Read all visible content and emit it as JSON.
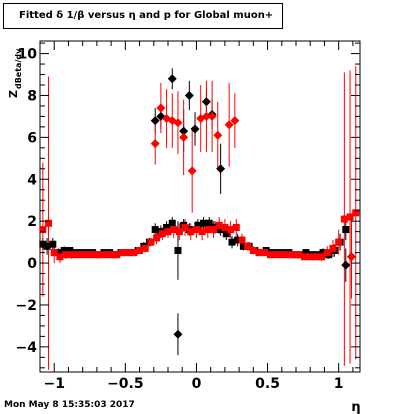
{
  "title": "Fitted δ 1/β versus η and p for Global muon+",
  "footer_timestamp": "Mon May  8 15:35:03 2017",
  "colors": {
    "series_black": "#000000",
    "series_red": "#ff0000",
    "axis": "#000000",
    "background": "#ffffff"
  },
  "chart_data": {
    "type": "scatter",
    "title": "Fitted δ 1/β versus η and p for Global muon+",
    "xlabel": "η",
    "ylabel": "Z_dBeta/dv",
    "ylabel_main": "Z",
    "ylabel_sub": "dBeta/dv",
    "xlim": [
      -1.1,
      1.15
    ],
    "ylim": [
      -5.2,
      10.6
    ],
    "x_ticks": [
      -1,
      -0.5,
      0,
      0.5,
      1
    ],
    "x_tick_labels": [
      "−1",
      "−0.5",
      "0",
      "0.5",
      "1"
    ],
    "y_ticks": [
      -4,
      -2,
      0,
      2,
      4,
      6,
      8,
      10
    ],
    "y_tick_labels": [
      "−4",
      "−2",
      "0",
      "2",
      "4",
      "6",
      "8",
      "10"
    ],
    "grid": false,
    "series": [
      {
        "color": "#000000",
        "points": [
          {
            "x": -1.08,
            "y": 0.9,
            "marker": "square",
            "err": 0.3
          },
          {
            "x": -1.05,
            "y": 0.8,
            "marker": "square",
            "err": 0.4
          },
          {
            "x": -1.01,
            "y": 0.9,
            "marker": "square",
            "err": 0.3
          },
          {
            "x": -0.97,
            "y": 0.5,
            "marker": "square",
            "err": 0.2
          },
          {
            "x": -0.93,
            "y": 0.6,
            "marker": "square",
            "err": 0.2
          },
          {
            "x": -0.89,
            "y": 0.6,
            "marker": "square",
            "err": 0.1
          },
          {
            "x": -0.85,
            "y": 0.5,
            "marker": "square",
            "err": 0.1
          },
          {
            "x": -0.81,
            "y": 0.5,
            "marker": "square",
            "err": 0.1
          },
          {
            "x": -0.77,
            "y": 0.5,
            "marker": "square",
            "err": 0.1
          },
          {
            "x": -0.73,
            "y": 0.5,
            "marker": "square",
            "err": 0.1
          },
          {
            "x": -0.69,
            "y": 0.4,
            "marker": "square",
            "err": 0.1
          },
          {
            "x": -0.65,
            "y": 0.5,
            "marker": "square",
            "err": 0.1
          },
          {
            "x": -0.61,
            "y": 0.5,
            "marker": "square",
            "err": 0.1
          },
          {
            "x": -0.57,
            "y": 0.4,
            "marker": "square",
            "err": 0.1
          },
          {
            "x": -0.53,
            "y": 0.5,
            "marker": "square",
            "err": 0.1
          },
          {
            "x": -0.49,
            "y": 0.5,
            "marker": "square",
            "err": 0.1
          },
          {
            "x": -0.45,
            "y": 0.5,
            "marker": "square",
            "err": 0.1
          },
          {
            "x": -0.41,
            "y": 0.6,
            "marker": "square",
            "err": 0.1
          },
          {
            "x": -0.37,
            "y": 0.8,
            "marker": "square",
            "err": 0.2
          },
          {
            "x": -0.33,
            "y": 1.0,
            "marker": "square",
            "err": 0.2
          },
          {
            "x": -0.29,
            "y": 1.6,
            "marker": "square",
            "err": 0.3
          },
          {
            "x": -0.25,
            "y": 1.5,
            "marker": "square",
            "err": 0.3
          },
          {
            "x": -0.21,
            "y": 1.7,
            "marker": "square",
            "err": 0.3
          },
          {
            "x": -0.17,
            "y": 1.9,
            "marker": "square",
            "err": 0.3
          },
          {
            "x": -0.13,
            "y": 0.6,
            "marker": "square",
            "err": 1.4
          },
          {
            "x": -0.09,
            "y": 1.8,
            "marker": "square",
            "err": 0.3
          },
          {
            "x": -0.05,
            "y": 1.6,
            "marker": "square",
            "err": 0.3
          },
          {
            "x": 0.01,
            "y": 1.8,
            "marker": "square",
            "err": 0.3
          },
          {
            "x": 0.05,
            "y": 1.9,
            "marker": "square",
            "err": 0.3
          },
          {
            "x": 0.09,
            "y": 1.9,
            "marker": "square",
            "err": 0.3
          },
          {
            "x": 0.13,
            "y": 1.7,
            "marker": "square",
            "err": 0.3
          },
          {
            "x": 0.17,
            "y": 1.6,
            "marker": "square",
            "err": 0.3
          },
          {
            "x": 0.21,
            "y": 1.4,
            "marker": "square",
            "err": 0.3
          },
          {
            "x": 0.25,
            "y": 1.0,
            "marker": "square",
            "err": 0.3
          },
          {
            "x": 0.29,
            "y": 1.1,
            "marker": "square",
            "err": 0.3
          },
          {
            "x": 0.33,
            "y": 0.8,
            "marker": "square",
            "err": 0.2
          },
          {
            "x": 0.37,
            "y": 0.8,
            "marker": "square",
            "err": 0.2
          },
          {
            "x": 0.41,
            "y": 0.6,
            "marker": "square",
            "err": 0.1
          },
          {
            "x": 0.45,
            "y": 0.5,
            "marker": "square",
            "err": 0.1
          },
          {
            "x": 0.49,
            "y": 0.6,
            "marker": "square",
            "err": 0.1
          },
          {
            "x": 0.53,
            "y": 0.5,
            "marker": "square",
            "err": 0.1
          },
          {
            "x": 0.57,
            "y": 0.5,
            "marker": "square",
            "err": 0.1
          },
          {
            "x": 0.61,
            "y": 0.5,
            "marker": "square",
            "err": 0.1
          },
          {
            "x": 0.65,
            "y": 0.5,
            "marker": "square",
            "err": 0.1
          },
          {
            "x": 0.69,
            "y": 0.4,
            "marker": "square",
            "err": 0.1
          },
          {
            "x": 0.73,
            "y": 0.4,
            "marker": "square",
            "err": 0.1
          },
          {
            "x": 0.77,
            "y": 0.5,
            "marker": "square",
            "err": 0.1
          },
          {
            "x": 0.81,
            "y": 0.4,
            "marker": "square",
            "err": 0.1
          },
          {
            "x": 0.85,
            "y": 0.4,
            "marker": "square",
            "err": 0.1
          },
          {
            "x": 0.89,
            "y": 0.5,
            "marker": "square",
            "err": 0.2
          },
          {
            "x": 0.93,
            "y": 0.4,
            "marker": "square",
            "err": 0.2
          },
          {
            "x": 0.97,
            "y": 0.6,
            "marker": "square",
            "err": 0.3
          },
          {
            "x": 1.01,
            "y": 1.0,
            "marker": "square",
            "err": 0.4
          },
          {
            "x": 1.05,
            "y": 1.6,
            "marker": "square",
            "err": 0.5
          },
          {
            "x": -0.29,
            "y": 6.8,
            "marker": "diamond",
            "err": 0.6
          },
          {
            "x": -0.25,
            "y": 7.0,
            "marker": "diamond",
            "err": 0.6
          },
          {
            "x": -0.17,
            "y": 8.8,
            "marker": "diamond",
            "err": 0.5
          },
          {
            "x": -0.13,
            "y": -3.4,
            "marker": "diamond",
            "err": 1.0
          },
          {
            "x": -0.09,
            "y": 6.3,
            "marker": "diamond",
            "err": 1.0
          },
          {
            "x": -0.05,
            "y": 8.0,
            "marker": "diamond",
            "err": 0.7
          },
          {
            "x": -0.01,
            "y": 6.4,
            "marker": "diamond",
            "err": 0.8
          },
          {
            "x": 0.07,
            "y": 7.7,
            "marker": "diamond",
            "err": 0.6
          },
          {
            "x": 0.11,
            "y": 7.1,
            "marker": "diamond",
            "err": 0.7
          },
          {
            "x": 0.17,
            "y": 4.5,
            "marker": "diamond",
            "err": 1.2
          },
          {
            "x": 1.05,
            "y": -0.1,
            "marker": "diamond",
            "err": 0.8
          },
          {
            "x": 1.09,
            "y": 0.3,
            "marker": "diamond",
            "err": 1.5
          }
        ]
      },
      {
        "color": "#ff0000",
        "points": [
          {
            "x": -1.08,
            "y": 1.6,
            "marker": "square",
            "err": 3.2
          },
          {
            "x": -1.04,
            "y": 1.9,
            "marker": "square",
            "err": 7.0
          },
          {
            "x": -1.0,
            "y": 0.5,
            "marker": "square",
            "err": 0.5
          },
          {
            "x": -0.96,
            "y": 0.3,
            "marker": "square",
            "err": 0.3
          },
          {
            "x": -0.92,
            "y": 0.4,
            "marker": "square",
            "err": 0.2
          },
          {
            "x": -0.88,
            "y": 0.4,
            "marker": "square",
            "err": 0.2
          },
          {
            "x": -0.84,
            "y": 0.4,
            "marker": "square",
            "err": 0.1
          },
          {
            "x": -0.8,
            "y": 0.4,
            "marker": "square",
            "err": 0.1
          },
          {
            "x": -0.76,
            "y": 0.4,
            "marker": "square",
            "err": 0.1
          },
          {
            "x": -0.72,
            "y": 0.4,
            "marker": "square",
            "err": 0.1
          },
          {
            "x": -0.68,
            "y": 0.4,
            "marker": "square",
            "err": 0.1
          },
          {
            "x": -0.64,
            "y": 0.4,
            "marker": "square",
            "err": 0.1
          },
          {
            "x": -0.6,
            "y": 0.4,
            "marker": "square",
            "err": 0.1
          },
          {
            "x": -0.56,
            "y": 0.4,
            "marker": "square",
            "err": 0.1
          },
          {
            "x": -0.52,
            "y": 0.5,
            "marker": "square",
            "err": 0.1
          },
          {
            "x": -0.48,
            "y": 0.5,
            "marker": "square",
            "err": 0.1
          },
          {
            "x": -0.44,
            "y": 0.5,
            "marker": "square",
            "err": 0.1
          },
          {
            "x": -0.4,
            "y": 0.6,
            "marker": "square",
            "err": 0.1
          },
          {
            "x": -0.36,
            "y": 0.7,
            "marker": "square",
            "err": 0.2
          },
          {
            "x": -0.32,
            "y": 1.0,
            "marker": "square",
            "err": 0.2
          },
          {
            "x": -0.28,
            "y": 1.2,
            "marker": "square",
            "err": 0.3
          },
          {
            "x": -0.24,
            "y": 1.4,
            "marker": "square",
            "err": 0.3
          },
          {
            "x": -0.2,
            "y": 1.5,
            "marker": "square",
            "err": 0.3
          },
          {
            "x": -0.16,
            "y": 1.6,
            "marker": "square",
            "err": 0.4
          },
          {
            "x": -0.12,
            "y": 1.5,
            "marker": "square",
            "err": 0.4
          },
          {
            "x": -0.08,
            "y": 1.7,
            "marker": "square",
            "err": 0.4
          },
          {
            "x": -0.04,
            "y": 1.5,
            "marker": "square",
            "err": 0.4
          },
          {
            "x": 0.0,
            "y": 1.6,
            "marker": "square",
            "err": 0.4
          },
          {
            "x": 0.04,
            "y": 1.5,
            "marker": "square",
            "err": 0.4
          },
          {
            "x": 0.08,
            "y": 1.6,
            "marker": "square",
            "err": 0.4
          },
          {
            "x": 0.12,
            "y": 1.6,
            "marker": "square",
            "err": 0.4
          },
          {
            "x": 0.16,
            "y": 1.8,
            "marker": "square",
            "err": 0.4
          },
          {
            "x": 0.2,
            "y": 1.7,
            "marker": "square",
            "err": 0.4
          },
          {
            "x": 0.24,
            "y": 1.6,
            "marker": "square",
            "err": 0.4
          },
          {
            "x": 0.28,
            "y": 1.7,
            "marker": "square",
            "err": 0.4
          },
          {
            "x": 0.32,
            "y": 1.1,
            "marker": "square",
            "err": 0.3
          },
          {
            "x": 0.36,
            "y": 0.8,
            "marker": "square",
            "err": 0.2
          },
          {
            "x": 0.4,
            "y": 0.6,
            "marker": "square",
            "err": 0.2
          },
          {
            "x": 0.44,
            "y": 0.5,
            "marker": "square",
            "err": 0.1
          },
          {
            "x": 0.48,
            "y": 0.5,
            "marker": "square",
            "err": 0.1
          },
          {
            "x": 0.52,
            "y": 0.4,
            "marker": "square",
            "err": 0.1
          },
          {
            "x": 0.56,
            "y": 0.4,
            "marker": "square",
            "err": 0.1
          },
          {
            "x": 0.6,
            "y": 0.4,
            "marker": "square",
            "err": 0.1
          },
          {
            "x": 0.64,
            "y": 0.4,
            "marker": "square",
            "err": 0.1
          },
          {
            "x": 0.68,
            "y": 0.4,
            "marker": "square",
            "err": 0.1
          },
          {
            "x": 0.72,
            "y": 0.4,
            "marker": "square",
            "err": 0.1
          },
          {
            "x": 0.76,
            "y": 0.3,
            "marker": "square",
            "err": 0.1
          },
          {
            "x": 0.8,
            "y": 0.3,
            "marker": "square",
            "err": 0.1
          },
          {
            "x": 0.84,
            "y": 0.3,
            "marker": "square",
            "err": 0.1
          },
          {
            "x": 0.88,
            "y": 0.3,
            "marker": "square",
            "err": 0.2
          },
          {
            "x": 0.92,
            "y": 0.5,
            "marker": "square",
            "err": 0.3
          },
          {
            "x": 0.96,
            "y": 0.7,
            "marker": "square",
            "err": 0.4
          },
          {
            "x": 1.0,
            "y": 1.0,
            "marker": "square",
            "err": 0.6
          },
          {
            "x": 1.04,
            "y": 2.1,
            "marker": "square",
            "err": 7.0
          },
          {
            "x": 1.08,
            "y": 2.2,
            "marker": "square",
            "err": 7.0
          },
          {
            "x": 1.12,
            "y": 2.4,
            "marker": "square",
            "err": 7.0
          },
          {
            "x": -0.29,
            "y": 5.7,
            "marker": "diamond",
            "err": 1.0
          },
          {
            "x": -0.25,
            "y": 7.4,
            "marker": "diamond",
            "err": 1.2
          },
          {
            "x": -0.21,
            "y": 6.9,
            "marker": "diamond",
            "err": 1.4
          },
          {
            "x": -0.17,
            "y": 6.8,
            "marker": "diamond",
            "err": 1.3
          },
          {
            "x": -0.13,
            "y": 6.7,
            "marker": "diamond",
            "err": 1.5
          },
          {
            "x": -0.09,
            "y": 6.0,
            "marker": "diamond",
            "err": 1.8
          },
          {
            "x": -0.03,
            "y": 4.4,
            "marker": "diamond",
            "err": 2.0
          },
          {
            "x": 0.03,
            "y": 6.9,
            "marker": "diamond",
            "err": 1.6
          },
          {
            "x": 0.07,
            "y": 7.0,
            "marker": "diamond",
            "err": 1.7
          },
          {
            "x": 0.11,
            "y": 7.0,
            "marker": "diamond",
            "err": 1.7
          },
          {
            "x": 0.15,
            "y": 6.1,
            "marker": "diamond",
            "err": 1.6
          },
          {
            "x": 0.23,
            "y": 6.6,
            "marker": "diamond",
            "err": 2.0
          },
          {
            "x": 0.27,
            "y": 6.8,
            "marker": "diamond",
            "err": 1.3
          },
          {
            "x": 1.09,
            "y": 0.3,
            "marker": "diamond",
            "err": 2.0
          }
        ]
      }
    ]
  }
}
